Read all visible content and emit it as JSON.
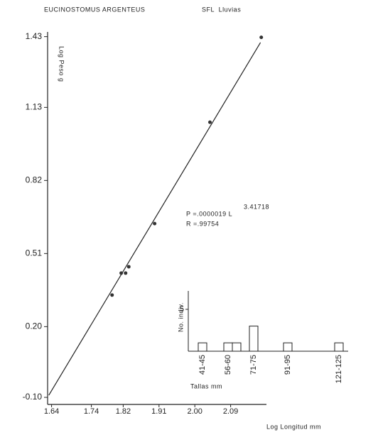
{
  "chart_data": [
    {
      "type": "scatter",
      "title": "EUCINOSTOMUS ARGENTEUS",
      "subtitle": "SFL  Lluvias",
      "y_label": "Log Peso g",
      "x_label": "Log Longitud mm",
      "annotations": [
        "P =.0000019 L",
        "3.41718",
        "R =.99754"
      ],
      "x": [
        1.792,
        1.815,
        1.826,
        1.834,
        1.899,
        2.038,
        2.167
      ],
      "y": [
        0.334,
        0.427,
        0.427,
        0.454,
        0.637,
        1.067,
        1.427
      ],
      "color": "#333333",
      "fit_line": {
        "x": [
          1.633,
          2.165
        ],
        "y": [
          -0.091,
          1.405
        ]
      },
      "xlim": [
        1.63,
        2.18
      ],
      "ylim": [
        -0.13,
        1.45
      ],
      "xticks": [
        1.64,
        1.74,
        1.82,
        1.91,
        {
          "value": 2.0,
          "label": "2.00"
        },
        2.09
      ],
      "yticks": [
        {
          "value": -0.1,
          "label": "-0.10"
        },
        {
          "value": 0.2,
          "label": "0.20"
        },
        0.51,
        0.82,
        1.13,
        1.43
      ]
    },
    {
      "type": "bar",
      "y_label": "No. indiv.",
      "x_label": "Tallas mm",
      "categories": [
        "41-45",
        null,
        null,
        "56-60",
        null,
        null,
        "71-75",
        null,
        null,
        null,
        "91-95",
        null,
        null,
        null,
        null,
        null,
        "121-125"
      ],
      "values": [
        1,
        0,
        0,
        1,
        1,
        0,
        3,
        0,
        0,
        0,
        1,
        0,
        0,
        0,
        0,
        0,
        1
      ],
      "ylim": [
        0,
        7.2
      ],
      "yticks": [
        5
      ],
      "color": "#ffffff"
    }
  ]
}
